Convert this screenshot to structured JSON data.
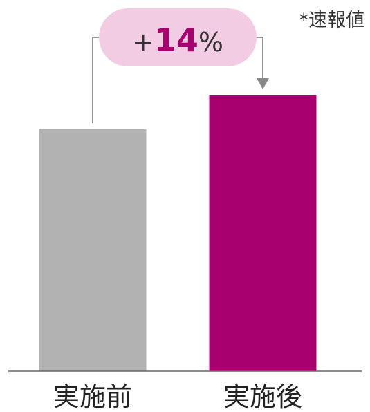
{
  "chart_data": {
    "type": "bar",
    "categories": [
      "実施前",
      "実施後"
    ],
    "values": [
      100,
      114
    ],
    "colors": [
      "#b2b2b2",
      "#a8006e"
    ],
    "ylim": [
      0,
      114
    ],
    "note": "*速報値",
    "callout": {
      "sign": "+",
      "number": "14",
      "unit": "%",
      "bubble_color": "#f2cce3",
      "number_color": "#a8006e",
      "line_color": "#888888"
    },
    "grid": false,
    "legend": "none"
  }
}
